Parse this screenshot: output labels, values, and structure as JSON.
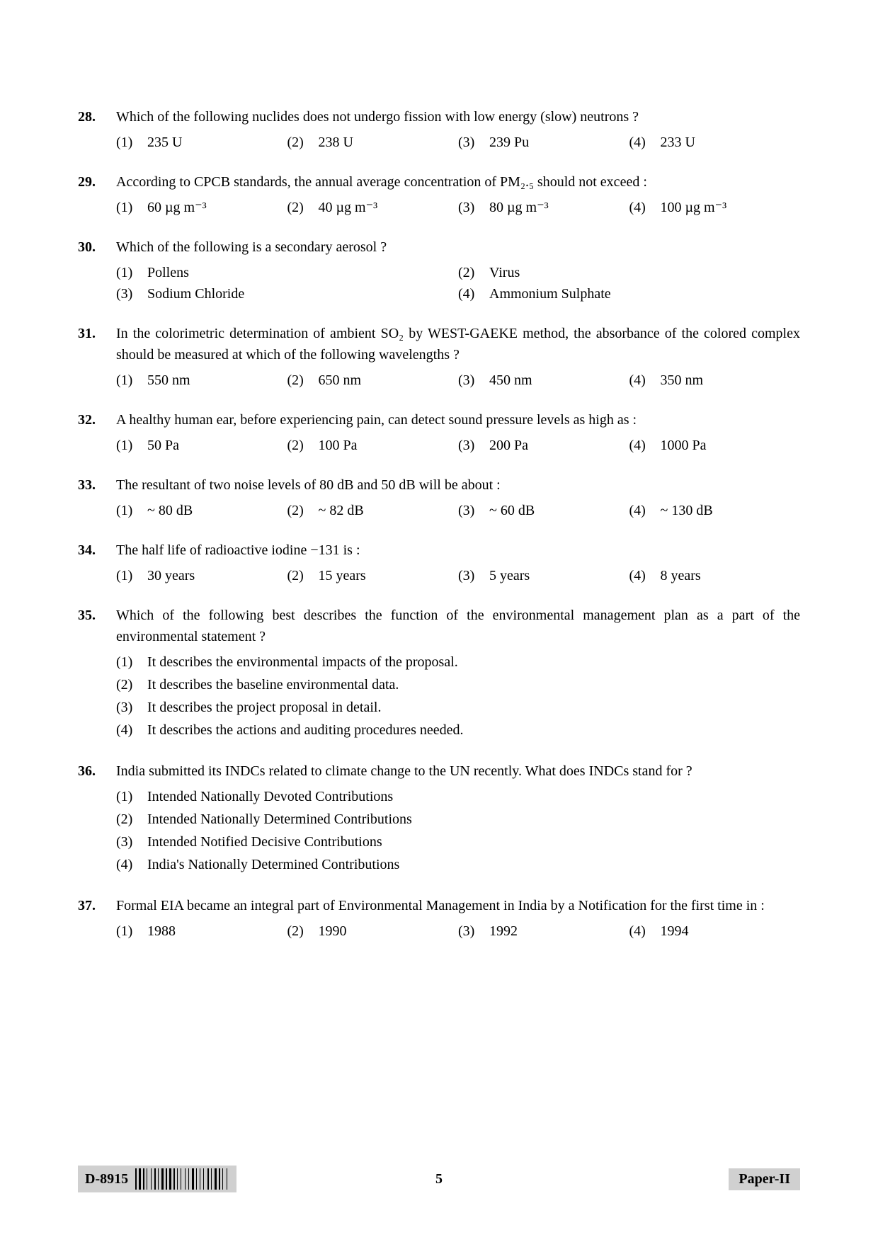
{
  "questions": [
    {
      "num": "28.",
      "stem": "Which of the following nuclides does not undergo fission with low energy (slow) neutrons ?",
      "layout": "4",
      "opts": [
        {
          "n": "(1)",
          "t": "235 U"
        },
        {
          "n": "(2)",
          "t": "238 U"
        },
        {
          "n": "(3)",
          "t": "239 Pu"
        },
        {
          "n": "(4)",
          "t": "233 U"
        }
      ]
    },
    {
      "num": "29.",
      "stem": "According to CPCB standards, the annual average concentration of PM₂.₅ should not exceed :",
      "layout": "4",
      "opts": [
        {
          "n": "(1)",
          "t": "60 µg m⁻³"
        },
        {
          "n": "(2)",
          "t": "40 µg m⁻³"
        },
        {
          "n": "(3)",
          "t": "80 µg m⁻³"
        },
        {
          "n": "(4)",
          "t": "100 µg m⁻³"
        }
      ]
    },
    {
      "num": "30.",
      "stem": "Which of the following is a secondary aerosol ?",
      "layout": "2",
      "opts": [
        {
          "n": "(1)",
          "t": "Pollens"
        },
        {
          "n": "(2)",
          "t": "Virus"
        },
        {
          "n": "(3)",
          "t": "Sodium Chloride"
        },
        {
          "n": "(4)",
          "t": "Ammonium Sulphate"
        }
      ]
    },
    {
      "num": "31.",
      "stem": "In the colorimetric determination of ambient SO₂ by WEST-GAEKE method, the absorbance of the colored complex should be measured at which of the following wavelengths ?",
      "layout": "4",
      "opts": [
        {
          "n": "(1)",
          "t": "550 nm"
        },
        {
          "n": "(2)",
          "t": "650 nm"
        },
        {
          "n": "(3)",
          "t": "450 nm"
        },
        {
          "n": "(4)",
          "t": "350 nm"
        }
      ]
    },
    {
      "num": "32.",
      "stem": "A healthy human ear, before experiencing pain, can detect sound pressure levels as high as :",
      "layout": "4",
      "opts": [
        {
          "n": "(1)",
          "t": "50 Pa"
        },
        {
          "n": "(2)",
          "t": "100 Pa"
        },
        {
          "n": "(3)",
          "t": "200 Pa"
        },
        {
          "n": "(4)",
          "t": "1000 Pa"
        }
      ]
    },
    {
      "num": "33.",
      "stem": "The resultant of two noise levels of 80 dB and 50 dB will be about :",
      "layout": "4",
      "opts": [
        {
          "n": "(1)",
          "t": "~ 80 dB"
        },
        {
          "n": "(2)",
          "t": "~ 82 dB"
        },
        {
          "n": "(3)",
          "t": "~ 60 dB"
        },
        {
          "n": "(4)",
          "t": "~ 130 dB"
        }
      ]
    },
    {
      "num": "34.",
      "stem": "The half life of radioactive iodine −131 is :",
      "layout": "4",
      "opts": [
        {
          "n": "(1)",
          "t": "30 years"
        },
        {
          "n": "(2)",
          "t": "15 years"
        },
        {
          "n": "(3)",
          "t": "5 years"
        },
        {
          "n": "(4)",
          "t": "8 years"
        }
      ]
    },
    {
      "num": "35.",
      "stem": "Which of the following best describes the function of the environmental management plan as a part of the environmental statement ?",
      "layout": "1",
      "opts": [
        {
          "n": "(1)",
          "t": "It describes the environmental impacts of the proposal."
        },
        {
          "n": "(2)",
          "t": "It describes the baseline environmental data."
        },
        {
          "n": "(3)",
          "t": "It describes the project proposal in detail."
        },
        {
          "n": "(4)",
          "t": "It describes the actions and auditing procedures needed."
        }
      ]
    },
    {
      "num": "36.",
      "stem": "India submitted its INDCs related to climate change to the UN recently.  What does INDCs stand for ?",
      "layout": "1",
      "opts": [
        {
          "n": "(1)",
          "t": "Intended Nationally Devoted Contributions"
        },
        {
          "n": "(2)",
          "t": "Intended Nationally Determined Contributions"
        },
        {
          "n": "(3)",
          "t": "Intended Notified Decisive Contributions"
        },
        {
          "n": "(4)",
          "t": "India's Nationally Determined Contributions"
        }
      ]
    },
    {
      "num": "37.",
      "stem": "Formal EIA became an integral part of Environmental Management in India by a Notification for the first time in :",
      "layout": "4",
      "opts": [
        {
          "n": "(1)",
          "t": "1988"
        },
        {
          "n": "(2)",
          "t": "1990"
        },
        {
          "n": "(3)",
          "t": "1992"
        },
        {
          "n": "(4)",
          "t": "1994"
        }
      ]
    }
  ],
  "footer": {
    "code": "D-8915",
    "page": "5",
    "paper": "Paper-II"
  },
  "barcode_widths": [
    2,
    1,
    3,
    1,
    2,
    1,
    1,
    3,
    1,
    2,
    2,
    1,
    1,
    2,
    3,
    1,
    2,
    1,
    3,
    1,
    2,
    1,
    1,
    2,
    1,
    3,
    1,
    2,
    1,
    2,
    3,
    1,
    1,
    2,
    1,
    2,
    1,
    3,
    2,
    1,
    1,
    2,
    3,
    1,
    2,
    1,
    1,
    3,
    1,
    2
  ]
}
